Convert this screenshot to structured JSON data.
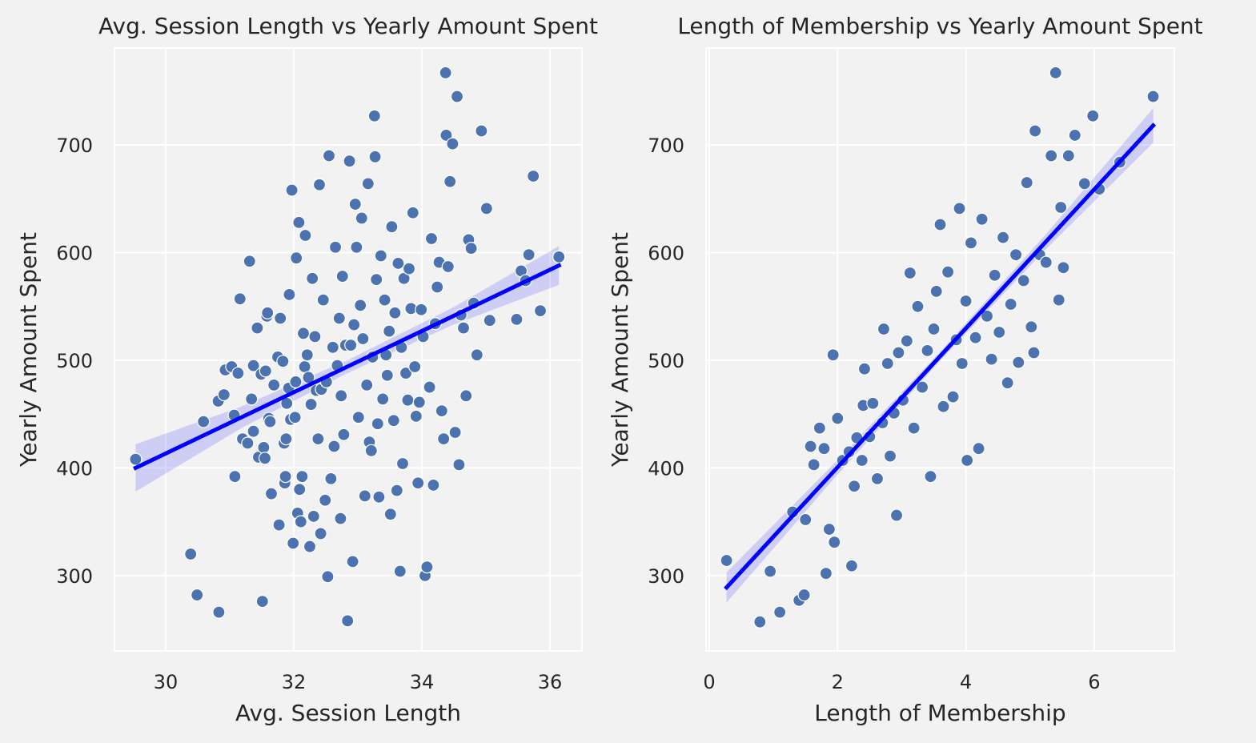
{
  "chart_data": [
    {
      "type": "scatter",
      "title": "Avg. Session Length vs Yearly Amount Spent",
      "xlabel": "Avg. Session Length",
      "ylabel": "Yearly Amount Spent",
      "xlim": [
        29.2,
        36.5
      ],
      "ylim": [
        230,
        790
      ],
      "xticks": [
        30,
        32,
        34,
        36
      ],
      "yticks": [
        300,
        400,
        500,
        600,
        700
      ],
      "grid": true,
      "point_color": "#4c72b0",
      "fit_color": "#0000ff",
      "fit_line": {
        "x": [
          29.53,
          36.14
        ],
        "y": [
          400,
          588
        ]
      },
      "fit_ci_width": [
        22,
        10,
        6,
        8,
        18
      ],
      "points": [
        [
          29.53,
          408
        ],
        [
          30.39,
          320
        ],
        [
          30.49,
          282
        ],
        [
          30.59,
          443
        ],
        [
          30.82,
          462
        ],
        [
          30.83,
          266
        ],
        [
          30.91,
          468
        ],
        [
          30.93,
          491
        ],
        [
          31.03,
          494
        ],
        [
          31.07,
          449
        ],
        [
          31.08,
          392
        ],
        [
          31.13,
          488
        ],
        [
          31.16,
          557
        ],
        [
          31.2,
          427
        ],
        [
          31.28,
          423
        ],
        [
          31.31,
          592
        ],
        [
          31.34,
          464
        ],
        [
          31.37,
          434
        ],
        [
          31.37,
          495
        ],
        [
          31.43,
          530
        ],
        [
          31.45,
          410
        ],
        [
          31.49,
          487
        ],
        [
          31.51,
          276
        ],
        [
          31.53,
          419
        ],
        [
          31.55,
          409
        ],
        [
          31.56,
          490
        ],
        [
          31.58,
          541
        ],
        [
          31.59,
          544
        ],
        [
          31.61,
          446
        ],
        [
          31.63,
          443
        ],
        [
          31.65,
          376
        ],
        [
          31.69,
          477
        ],
        [
          31.75,
          503
        ],
        [
          31.77,
          347
        ],
        [
          31.79,
          539
        ],
        [
          31.83,
          499
        ],
        [
          31.85,
          423
        ],
        [
          31.86,
          386
        ],
        [
          31.87,
          392
        ],
        [
          31.88,
          427
        ],
        [
          31.89,
          460
        ],
        [
          31.92,
          474
        ],
        [
          31.93,
          561
        ],
        [
          31.95,
          445
        ],
        [
          31.97,
          658
        ],
        [
          31.99,
          330
        ],
        [
          32.02,
          447
        ],
        [
          32.03,
          480
        ],
        [
          32.04,
          595
        ],
        [
          32.06,
          358
        ],
        [
          32.08,
          628
        ],
        [
          32.09,
          380
        ],
        [
          32.11,
          350
        ],
        [
          32.13,
          392
        ],
        [
          32.15,
          525
        ],
        [
          32.17,
          494
        ],
        [
          32.18,
          616
        ],
        [
          32.21,
          505
        ],
        [
          32.23,
          484
        ],
        [
          32.25,
          327
        ],
        [
          32.27,
          459
        ],
        [
          32.29,
          576
        ],
        [
          32.31,
          355
        ],
        [
          32.33,
          522
        ],
        [
          32.35,
          472
        ],
        [
          32.38,
          427
        ],
        [
          32.4,
          663
        ],
        [
          32.42,
          339
        ],
        [
          32.43,
          473
        ],
        [
          32.46,
          556
        ],
        [
          32.49,
          370
        ],
        [
          32.51,
          480
        ],
        [
          32.53,
          299
        ],
        [
          32.55,
          690
        ],
        [
          32.58,
          390
        ],
        [
          32.61,
          512
        ],
        [
          32.63,
          420
        ],
        [
          32.65,
          605
        ],
        [
          32.68,
          495
        ],
        [
          32.71,
          539
        ],
        [
          32.73,
          353
        ],
        [
          32.74,
          467
        ],
        [
          32.76,
          578
        ],
        [
          32.78,
          431
        ],
        [
          32.81,
          514
        ],
        [
          32.84,
          258
        ],
        [
          32.87,
          685
        ],
        [
          32.89,
          514
        ],
        [
          32.92,
          313
        ],
        [
          32.94,
          533
        ],
        [
          32.96,
          645
        ],
        [
          32.98,
          605
        ],
        [
          33.01,
          447
        ],
        [
          33.04,
          551
        ],
        [
          33.06,
          632
        ],
        [
          33.08,
          520
        ],
        [
          33.11,
          374
        ],
        [
          33.14,
          477
        ],
        [
          33.16,
          664
        ],
        [
          33.18,
          424
        ],
        [
          33.21,
          416
        ],
        [
          33.23,
          503
        ],
        [
          33.26,
          727
        ],
        [
          33.27,
          689
        ],
        [
          33.29,
          575
        ],
        [
          33.31,
          441
        ],
        [
          33.33,
          373
        ],
        [
          33.36,
          597
        ],
        [
          33.39,
          464
        ],
        [
          33.42,
          556
        ],
        [
          33.44,
          505
        ],
        [
          33.46,
          486
        ],
        [
          33.49,
          527
        ],
        [
          33.51,
          357
        ],
        [
          33.53,
          624
        ],
        [
          33.56,
          444
        ],
        [
          33.58,
          544
        ],
        [
          33.61,
          379
        ],
        [
          33.63,
          590
        ],
        [
          33.66,
          304
        ],
        [
          33.68,
          512
        ],
        [
          33.7,
          404
        ],
        [
          33.72,
          576
        ],
        [
          33.75,
          488
        ],
        [
          33.78,
          463
        ],
        [
          33.8,
          585
        ],
        [
          33.83,
          548
        ],
        [
          33.86,
          637
        ],
        [
          33.89,
          494
        ],
        [
          33.91,
          448
        ],
        [
          33.94,
          386
        ],
        [
          33.96,
          461
        ],
        [
          33.99,
          547
        ],
        [
          34.02,
          522
        ],
        [
          34.05,
          300
        ],
        [
          34.08,
          308
        ],
        [
          34.12,
          475
        ],
        [
          34.15,
          613
        ],
        [
          34.18,
          384
        ],
        [
          34.21,
          534
        ],
        [
          34.24,
          568
        ],
        [
          34.27,
          591
        ],
        [
          34.31,
          453
        ],
        [
          34.34,
          427
        ],
        [
          34.37,
          767
        ],
        [
          34.38,
          709
        ],
        [
          34.41,
          587
        ],
        [
          34.44,
          666
        ],
        [
          34.48,
          701
        ],
        [
          34.52,
          433
        ],
        [
          34.55,
          745
        ],
        [
          34.58,
          403
        ],
        [
          34.61,
          542
        ],
        [
          34.65,
          530
        ],
        [
          34.69,
          467
        ],
        [
          34.73,
          612
        ],
        [
          34.77,
          604
        ],
        [
          34.81,
          553
        ],
        [
          34.86,
          505
        ],
        [
          34.93,
          713
        ],
        [
          35.01,
          641
        ],
        [
          35.06,
          537
        ],
        [
          35.48,
          538
        ],
        [
          35.55,
          583
        ],
        [
          35.62,
          574
        ],
        [
          35.67,
          598
        ],
        [
          35.74,
          671
        ],
        [
          35.85,
          546
        ],
        [
          36.14,
          596
        ]
      ]
    },
    {
      "type": "scatter",
      "title": "Length of Membership vs Yearly Amount Spent",
      "xlabel": "Length of Membership",
      "ylabel": "Yearly Amount Spent",
      "xlim": [
        -0.05,
        7.25
      ],
      "ylim": [
        230,
        790
      ],
      "xticks": [
        0,
        2,
        4,
        6
      ],
      "yticks": [
        300,
        400,
        500,
        600,
        700
      ],
      "grid": true,
      "point_color": "#4c72b0",
      "fit_color": "#0000ff",
      "fit_line": {
        "x": [
          0.27,
          6.92
        ],
        "y": [
          289,
          718
        ]
      },
      "fit_ci_width": [
        14,
        7,
        4,
        7,
        16
      ],
      "points": [
        [
          0.27,
          314
        ],
        [
          0.79,
          257
        ],
        [
          0.95,
          304
        ],
        [
          1.1,
          266
        ],
        [
          1.3,
          359
        ],
        [
          1.4,
          277
        ],
        [
          1.48,
          282
        ],
        [
          1.5,
          352
        ],
        [
          1.58,
          420
        ],
        [
          1.63,
          403
        ],
        [
          1.72,
          437
        ],
        [
          1.79,
          418
        ],
        [
          1.82,
          302
        ],
        [
          1.87,
          343
        ],
        [
          1.93,
          505
        ],
        [
          1.95,
          331
        ],
        [
          2.0,
          446
        ],
        [
          2.08,
          407
        ],
        [
          2.18,
          415
        ],
        [
          2.22,
          309
        ],
        [
          2.26,
          383
        ],
        [
          2.3,
          428
        ],
        [
          2.38,
          407
        ],
        [
          2.4,
          458
        ],
        [
          2.42,
          492
        ],
        [
          2.5,
          429
        ],
        [
          2.55,
          460
        ],
        [
          2.62,
          390
        ],
        [
          2.7,
          442
        ],
        [
          2.72,
          529
        ],
        [
          2.78,
          497
        ],
        [
          2.82,
          411
        ],
        [
          2.88,
          451
        ],
        [
          2.92,
          356
        ],
        [
          2.95,
          507
        ],
        [
          3.02,
          463
        ],
        [
          3.08,
          518
        ],
        [
          3.13,
          581
        ],
        [
          3.19,
          437
        ],
        [
          3.25,
          550
        ],
        [
          3.32,
          475
        ],
        [
          3.4,
          509
        ],
        [
          3.45,
          392
        ],
        [
          3.5,
          529
        ],
        [
          3.54,
          564
        ],
        [
          3.6,
          626
        ],
        [
          3.65,
          457
        ],
        [
          3.72,
          582
        ],
        [
          3.8,
          466
        ],
        [
          3.85,
          519
        ],
        [
          3.9,
          641
        ],
        [
          3.94,
          497
        ],
        [
          4.0,
          555
        ],
        [
          4.02,
          407
        ],
        [
          4.08,
          609
        ],
        [
          4.15,
          521
        ],
        [
          4.2,
          418
        ],
        [
          4.25,
          631
        ],
        [
          4.33,
          541
        ],
        [
          4.4,
          501
        ],
        [
          4.45,
          579
        ],
        [
          4.52,
          526
        ],
        [
          4.58,
          614
        ],
        [
          4.65,
          479
        ],
        [
          4.7,
          552
        ],
        [
          4.78,
          598
        ],
        [
          4.82,
          498
        ],
        [
          4.9,
          574
        ],
        [
          4.95,
          665
        ],
        [
          5.02,
          531
        ],
        [
          5.06,
          507
        ],
        [
          5.08,
          713
        ],
        [
          5.15,
          598
        ],
        [
          5.25,
          591
        ],
        [
          5.33,
          690
        ],
        [
          5.4,
          767
        ],
        [
          5.45,
          556
        ],
        [
          5.48,
          642
        ],
        [
          5.52,
          586
        ],
        [
          5.6,
          690
        ],
        [
          5.7,
          709
        ],
        [
          5.85,
          664
        ],
        [
          5.98,
          727
        ],
        [
          6.08,
          659
        ],
        [
          6.4,
          684
        ],
        [
          6.92,
          745
        ]
      ]
    }
  ]
}
